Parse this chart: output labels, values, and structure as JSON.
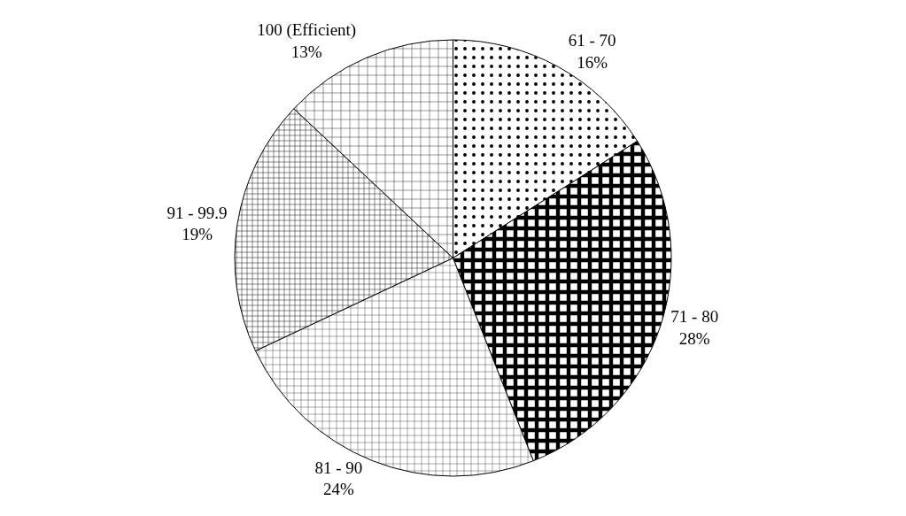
{
  "chart_data": {
    "type": "pie",
    "categories": [
      "61 - 70",
      "71 - 80",
      "81 - 90",
      "91 - 99.9",
      "100 (Efficient)"
    ],
    "values": [
      16,
      28,
      24,
      19,
      13
    ],
    "value_labels": [
      "16%",
      "28%",
      "24%",
      "19%",
      "13%"
    ],
    "colors": [
      "#000000",
      "#000000",
      "#000000",
      "#000000",
      "#000000"
    ],
    "legend": false
  }
}
